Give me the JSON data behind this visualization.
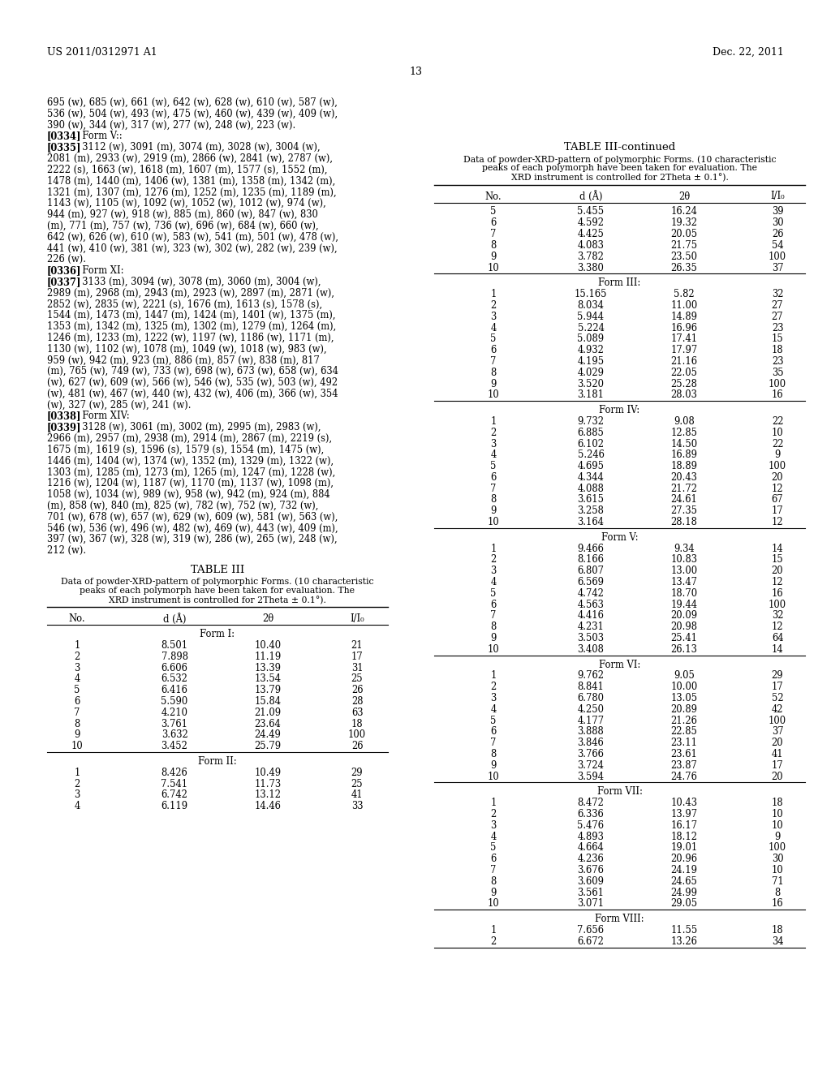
{
  "header_left": "US 2011/0312971 A1",
  "header_right": "Dec. 22, 2011",
  "page_number": "13",
  "left_text_lines": [
    {
      "text": "695 (w), 685 (w), 661 (w), 642 (w), 628 (w), 610 (w), 587 (w),",
      "bold_prefix": ""
    },
    {
      "text": "536 (w), 504 (w), 493 (w), 475 (w), 460 (w), 439 (w), 409 (w),",
      "bold_prefix": ""
    },
    {
      "text": "390 (w), 344 (w), 317 (w), 277 (w), 248 (w), 223 (w).",
      "bold_prefix": ""
    },
    {
      "text": "Form V::",
      "bold_prefix": "[0334]"
    },
    {
      "text": "3112 (w), 3091 (m), 3074 (m), 3028 (w), 3004 (w),",
      "bold_prefix": "[0335]"
    },
    {
      "text": "2081 (m), 2933 (w), 2919 (m), 2866 (w), 2841 (w), 2787 (w),",
      "bold_prefix": ""
    },
    {
      "text": "2222 (s), 1663 (w), 1618 (m), 1607 (m), 1577 (s), 1552 (m),",
      "bold_prefix": ""
    },
    {
      "text": "1478 (m), 1440 (m), 1406 (w), 1381 (m), 1358 (m), 1342 (m),",
      "bold_prefix": ""
    },
    {
      "text": "1321 (m), 1307 (m), 1276 (m), 1252 (m), 1235 (m), 1189 (m),",
      "bold_prefix": ""
    },
    {
      "text": "1143 (w), 1105 (w), 1092 (w), 1052 (w), 1012 (w), 974 (w),",
      "bold_prefix": ""
    },
    {
      "text": "944 (m), 927 (w), 918 (w), 885 (m), 860 (w), 847 (w), 830",
      "bold_prefix": ""
    },
    {
      "text": "(m), 771 (m), 757 (w), 736 (w), 696 (w), 684 (w), 660 (w),",
      "bold_prefix": ""
    },
    {
      "text": "642 (w), 626 (w), 610 (w), 583 (w), 541 (m), 501 (w), 478 (w),",
      "bold_prefix": ""
    },
    {
      "text": "441 (w), 410 (w), 381 (w), 323 (w), 302 (w), 282 (w), 239 (w),",
      "bold_prefix": ""
    },
    {
      "text": "226 (w).",
      "bold_prefix": ""
    },
    {
      "text": "Form XI:",
      "bold_prefix": "[0336]"
    },
    {
      "text": "3133 (m), 3094 (w), 3078 (m), 3060 (m), 3004 (w),",
      "bold_prefix": "[0337]"
    },
    {
      "text": "2989 (m), 2968 (m), 2943 (m), 2923 (w), 2897 (m), 2871 (w),",
      "bold_prefix": ""
    },
    {
      "text": "2852 (w), 2835 (w), 2221 (s), 1676 (m), 1613 (s), 1578 (s),",
      "bold_prefix": ""
    },
    {
      "text": "1544 (m), 1473 (m), 1447 (m), 1424 (m), 1401 (w), 1375 (m),",
      "bold_prefix": ""
    },
    {
      "text": "1353 (m), 1342 (m), 1325 (m), 1302 (m), 1279 (m), 1264 (m),",
      "bold_prefix": ""
    },
    {
      "text": "1246 (m), 1233 (m), 1222 (w), 1197 (w), 1186 (w), 1171 (m),",
      "bold_prefix": ""
    },
    {
      "text": "1130 (w), 1102 (w), 1078 (m), 1049 (w), 1018 (w), 983 (w),",
      "bold_prefix": ""
    },
    {
      "text": "959 (w), 942 (m), 923 (m), 886 (m), 857 (w), 838 (m), 817",
      "bold_prefix": ""
    },
    {
      "text": "(m), 765 (w), 749 (w), 733 (w), 698 (w), 673 (w), 658 (w), 634",
      "bold_prefix": ""
    },
    {
      "text": "(w), 627 (w), 609 (w), 566 (w), 546 (w), 535 (w), 503 (w), 492",
      "bold_prefix": ""
    },
    {
      "text": "(w), 481 (w), 467 (w), 440 (w), 432 (w), 406 (m), 366 (w), 354",
      "bold_prefix": ""
    },
    {
      "text": "(w), 327 (w), 285 (w), 241 (w).",
      "bold_prefix": ""
    },
    {
      "text": "Form XIV:",
      "bold_prefix": "[0338]"
    },
    {
      "text": "3128 (w), 3061 (m), 3002 (m), 2995 (m), 2983 (w),",
      "bold_prefix": "[0339]"
    },
    {
      "text": "2966 (m), 2957 (m), 2938 (m), 2914 (m), 2867 (m), 2219 (s),",
      "bold_prefix": ""
    },
    {
      "text": "1675 (m), 1619 (s), 1596 (s), 1579 (s), 1554 (m), 1475 (w),",
      "bold_prefix": ""
    },
    {
      "text": "1446 (m), 1404 (w), 1374 (w), 1352 (m), 1329 (m), 1322 (w),",
      "bold_prefix": ""
    },
    {
      "text": "1303 (m), 1285 (m), 1273 (m), 1265 (m), 1247 (m), 1228 (w),",
      "bold_prefix": ""
    },
    {
      "text": "1216 (w), 1204 (w), 1187 (w), 1170 (m), 1137 (w), 1098 (m),",
      "bold_prefix": ""
    },
    {
      "text": "1058 (w), 1034 (w), 989 (w), 958 (w), 942 (m), 924 (m), 884",
      "bold_prefix": ""
    },
    {
      "text": "(m), 858 (w), 840 (m), 825 (w), 782 (w), 752 (w), 732 (w),",
      "bold_prefix": ""
    },
    {
      "text": "701 (w), 678 (w), 657 (w), 629 (w), 609 (w), 581 (w), 563 (w),",
      "bold_prefix": ""
    },
    {
      "text": "546 (w), 536 (w), 496 (w), 482 (w), 469 (w), 443 (w), 409 (m),",
      "bold_prefix": ""
    },
    {
      "text": "397 (w), 367 (w), 328 (w), 319 (w), 286 (w), 265 (w), 248 (w),",
      "bold_prefix": ""
    },
    {
      "text": "212 (w).",
      "bold_prefix": ""
    }
  ],
  "table3_title": "TABLE III",
  "table3_caption_lines": [
    "Data of powder-XRD-pattern of polymorphic Forms. (10 characteristic",
    "peaks of each polymorph have been taken for evaluation. The",
    "XRD instrument is controlled for 2Theta ± 0.1°)."
  ],
  "table3_headers": [
    "No.",
    "d (Å)",
    "2θ",
    "I/I₀"
  ],
  "table3_form1_rows": [
    [
      "1",
      "8.501",
      "10.40",
      "21"
    ],
    [
      "2",
      "7.898",
      "11.19",
      "17"
    ],
    [
      "3",
      "6.606",
      "13.39",
      "31"
    ],
    [
      "4",
      "6.532",
      "13.54",
      "25"
    ],
    [
      "5",
      "6.416",
      "13.79",
      "26"
    ],
    [
      "6",
      "5.590",
      "15.84",
      "28"
    ],
    [
      "7",
      "4.210",
      "21.09",
      "63"
    ],
    [
      "8",
      "3.761",
      "23.64",
      "18"
    ],
    [
      "9",
      "3.632",
      "24.49",
      "100"
    ],
    [
      "10",
      "3.452",
      "25.79",
      "26"
    ]
  ],
  "table3_form2_rows": [
    [
      "1",
      "8.426",
      "10.49",
      "29"
    ],
    [
      "2",
      "7.541",
      "11.73",
      "25"
    ],
    [
      "3",
      "6.742",
      "13.12",
      "41"
    ],
    [
      "4",
      "6.119",
      "14.46",
      "33"
    ]
  ],
  "table3cont_title": "TABLE III-continued",
  "table3cont_caption_lines": [
    "Data of powder-XRD-pattern of polymorphic Forms. (10 characteristic",
    "peaks of each polymorph have been taken for evaluation. The",
    "XRD instrument is controlled for 2Theta ± 0.1°)."
  ],
  "table3cont_headers": [
    "No.",
    "d (Å)",
    "2θ",
    "I/I₀"
  ],
  "cont_form2_rows": [
    [
      "5",
      "5.455",
      "16.24",
      "39"
    ],
    [
      "6",
      "4.592",
      "19.32",
      "30"
    ],
    [
      "7",
      "4.425",
      "20.05",
      "26"
    ],
    [
      "8",
      "4.083",
      "21.75",
      "54"
    ],
    [
      "9",
      "3.782",
      "23.50",
      "100"
    ],
    [
      "10",
      "3.380",
      "26.35",
      "37"
    ]
  ],
  "cont_form3_rows": [
    [
      "1",
      "15.165",
      "5.82",
      "32"
    ],
    [
      "2",
      "8.034",
      "11.00",
      "27"
    ],
    [
      "3",
      "5.944",
      "14.89",
      "27"
    ],
    [
      "4",
      "5.224",
      "16.96",
      "23"
    ],
    [
      "5",
      "5.089",
      "17.41",
      "15"
    ],
    [
      "6",
      "4.932",
      "17.97",
      "18"
    ],
    [
      "7",
      "4.195",
      "21.16",
      "23"
    ],
    [
      "8",
      "4.029",
      "22.05",
      "35"
    ],
    [
      "9",
      "3.520",
      "25.28",
      "100"
    ],
    [
      "10",
      "3.181",
      "28.03",
      "16"
    ]
  ],
  "cont_form4_rows": [
    [
      "1",
      "9.732",
      "9.08",
      "22"
    ],
    [
      "2",
      "6.885",
      "12.85",
      "10"
    ],
    [
      "3",
      "6.102",
      "14.50",
      "22"
    ],
    [
      "4",
      "5.246",
      "16.89",
      "9"
    ],
    [
      "5",
      "4.695",
      "18.89",
      "100"
    ],
    [
      "6",
      "4.344",
      "20.43",
      "20"
    ],
    [
      "7",
      "4.088",
      "21.72",
      "12"
    ],
    [
      "8",
      "3.615",
      "24.61",
      "67"
    ],
    [
      "9",
      "3.258",
      "27.35",
      "17"
    ],
    [
      "10",
      "3.164",
      "28.18",
      "12"
    ]
  ],
  "cont_form5_rows": [
    [
      "1",
      "9.466",
      "9.34",
      "14"
    ],
    [
      "2",
      "8.166",
      "10.83",
      "15"
    ],
    [
      "3",
      "6.807",
      "13.00",
      "20"
    ],
    [
      "4",
      "6.569",
      "13.47",
      "12"
    ],
    [
      "5",
      "4.742",
      "18.70",
      "16"
    ],
    [
      "6",
      "4.563",
      "19.44",
      "100"
    ],
    [
      "7",
      "4.416",
      "20.09",
      "32"
    ],
    [
      "8",
      "4.231",
      "20.98",
      "12"
    ],
    [
      "9",
      "3.503",
      "25.41",
      "64"
    ],
    [
      "10",
      "3.408",
      "26.13",
      "14"
    ]
  ],
  "cont_form6_rows": [
    [
      "1",
      "9.762",
      "9.05",
      "29"
    ],
    [
      "2",
      "8.841",
      "10.00",
      "17"
    ],
    [
      "3",
      "6.780",
      "13.05",
      "52"
    ],
    [
      "4",
      "4.250",
      "20.89",
      "42"
    ],
    [
      "5",
      "4.177",
      "21.26",
      "100"
    ],
    [
      "6",
      "3.888",
      "22.85",
      "37"
    ],
    [
      "7",
      "3.846",
      "23.11",
      "20"
    ],
    [
      "8",
      "3.766",
      "23.61",
      "41"
    ],
    [
      "9",
      "3.724",
      "23.87",
      "17"
    ],
    [
      "10",
      "3.594",
      "24.76",
      "20"
    ]
  ],
  "cont_form7_rows": [
    [
      "1",
      "8.472",
      "10.43",
      "18"
    ],
    [
      "2",
      "6.336",
      "13.97",
      "10"
    ],
    [
      "3",
      "5.476",
      "16.17",
      "10"
    ],
    [
      "4",
      "4.893",
      "18.12",
      "9"
    ],
    [
      "5",
      "4.664",
      "19.01",
      "100"
    ],
    [
      "6",
      "4.236",
      "20.96",
      "30"
    ],
    [
      "7",
      "3.676",
      "24.19",
      "10"
    ],
    [
      "8",
      "3.609",
      "24.65",
      "71"
    ],
    [
      "9",
      "3.561",
      "24.99",
      "8"
    ],
    [
      "10",
      "3.071",
      "29.05",
      "16"
    ]
  ],
  "cont_form8_rows": [
    [
      "1",
      "7.656",
      "11.55",
      "18"
    ],
    [
      "2",
      "6.672",
      "13.26",
      "34"
    ]
  ]
}
